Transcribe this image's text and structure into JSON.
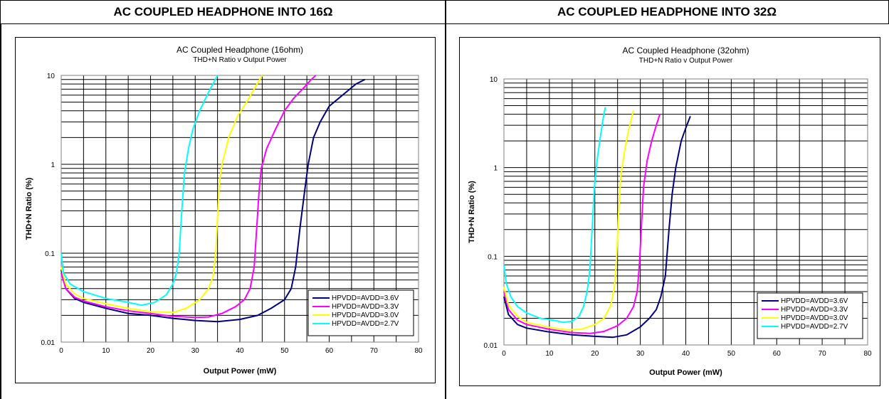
{
  "headers": {
    "left": "AC COUPLED HEADPHONE INTO 16Ω",
    "right": "AC COUPLED HEADPHONE INTO 32Ω"
  },
  "chart_data": [
    {
      "type": "line",
      "title": "AC Coupled Headphone (16ohm)",
      "subtitle": "THD+N Ratio v Output Power",
      "xlabel": "Output Power (mW)",
      "ylabel": "THD+N Ratio (%)",
      "xlim": [
        0,
        80
      ],
      "ylim": [
        0.01,
        10
      ],
      "yscale": "log",
      "grid": true,
      "legend_position": "bottom-right",
      "x_ticks": [
        "0",
        "10",
        "20",
        "30",
        "40",
        "50",
        "60",
        "70",
        "80"
      ],
      "y_ticks": [
        "0.01",
        "0.1",
        "1",
        "10"
      ],
      "series": [
        {
          "name": "HPVDD=AVDD=3.6V",
          "color": "#000080",
          "points": [
            [
              0,
              0.065
            ],
            [
              1,
              0.04
            ],
            [
              3,
              0.031
            ],
            [
              5,
              0.028
            ],
            [
              10,
              0.024
            ],
            [
              15,
              0.021
            ],
            [
              20,
              0.02
            ],
            [
              25,
              0.0185
            ],
            [
              30,
              0.0175
            ],
            [
              35,
              0.017
            ],
            [
              40,
              0.018
            ],
            [
              44,
              0.02
            ],
            [
              47,
              0.024
            ],
            [
              50,
              0.03
            ],
            [
              51.5,
              0.04
            ],
            [
              52.5,
              0.07
            ],
            [
              53.5,
              0.2
            ],
            [
              54.5,
              0.5
            ],
            [
              55.3,
              1
            ],
            [
              56.5,
              2
            ],
            [
              58,
              3
            ],
            [
              60,
              4.5
            ],
            [
              63,
              6
            ],
            [
              66,
              8
            ],
            [
              68,
              9
            ]
          ]
        },
        {
          "name": "HPVDD=AVDD=3.3V",
          "color": "#ff00ff",
          "points": [
            [
              0,
              0.06
            ],
            [
              1,
              0.04
            ],
            [
              3,
              0.032
            ],
            [
              5,
              0.029
            ],
            [
              10,
              0.025
            ],
            [
              15,
              0.0225
            ],
            [
              20,
              0.021
            ],
            [
              25,
              0.0195
            ],
            [
              30,
              0.019
            ],
            [
              33,
              0.0192
            ],
            [
              36,
              0.021
            ],
            [
              39,
              0.025
            ],
            [
              41,
              0.03
            ],
            [
              42.3,
              0.04
            ],
            [
              43.2,
              0.07
            ],
            [
              43.8,
              0.2
            ],
            [
              44.3,
              0.5
            ],
            [
              44.8,
              0.9
            ],
            [
              46,
              1.5
            ],
            [
              48,
              2.5
            ],
            [
              50,
              4
            ],
            [
              52,
              5.5
            ],
            [
              54,
              7
            ],
            [
              56,
              9
            ],
            [
              57,
              10
            ]
          ]
        },
        {
          "name": "HPVDD=AVDD=3.0V",
          "color": "#ffff00",
          "points": [
            [
              0,
              0.07
            ],
            [
              1,
              0.045
            ],
            [
              3,
              0.035
            ],
            [
              5,
              0.031
            ],
            [
              10,
              0.027
            ],
            [
              15,
              0.024
            ],
            [
              20,
              0.022
            ],
            [
              25,
              0.0215
            ],
            [
              28,
              0.024
            ],
            [
              31,
              0.03
            ],
            [
              33,
              0.04
            ],
            [
              34,
              0.055
            ],
            [
              34.6,
              0.1
            ],
            [
              35,
              0.25
            ],
            [
              35.4,
              0.6
            ],
            [
              36,
              1
            ],
            [
              37.5,
              2
            ],
            [
              39.5,
              3.5
            ],
            [
              41.5,
              5
            ],
            [
              43.5,
              7.5
            ],
            [
              45,
              10
            ]
          ]
        },
        {
          "name": "HPVDD=AVDD=2.7V",
          "color": "#00ffff",
          "points": [
            [
              0,
              0.1
            ],
            [
              0.5,
              0.06
            ],
            [
              2,
              0.045
            ],
            [
              5,
              0.037
            ],
            [
              10,
              0.031
            ],
            [
              15,
              0.028
            ],
            [
              18,
              0.026
            ],
            [
              21,
              0.028
            ],
            [
              23.5,
              0.034
            ],
            [
              25,
              0.045
            ],
            [
              25.8,
              0.06
            ],
            [
              26.4,
              0.1
            ],
            [
              27,
              0.3
            ],
            [
              27.6,
              0.8
            ],
            [
              28.5,
              1.5
            ],
            [
              29.5,
              2.5
            ],
            [
              31,
              4
            ],
            [
              33,
              6.5
            ],
            [
              35,
              10
            ]
          ]
        }
      ]
    },
    {
      "type": "line",
      "title": "AC Coupled Headphone (32ohm)",
      "subtitle": "THD+N Ratio v Output Power",
      "xlabel": "Output Power (mW)",
      "ylabel": "THD+N Ratio (%)",
      "xlim": [
        0,
        80
      ],
      "ylim": [
        0.01,
        10
      ],
      "yscale": "log",
      "grid": true,
      "legend_position": "bottom-right",
      "x_ticks": [
        "0",
        "10",
        "20",
        "30",
        "40",
        "50",
        "60",
        "70",
        "80"
      ],
      "y_ticks": [
        "0.01",
        "0.1",
        "1",
        "10"
      ],
      "series": [
        {
          "name": "HPVDD=AVDD=3.6V",
          "color": "#000080",
          "points": [
            [
              0,
              0.035
            ],
            [
              1,
              0.022
            ],
            [
              3,
              0.017
            ],
            [
              5,
              0.0155
            ],
            [
              10,
              0.014
            ],
            [
              15,
              0.013
            ],
            [
              20,
              0.0125
            ],
            [
              24,
              0.0122
            ],
            [
              27,
              0.013
            ],
            [
              30,
              0.016
            ],
            [
              32,
              0.02
            ],
            [
              33.5,
              0.025
            ],
            [
              34.5,
              0.035
            ],
            [
              35.5,
              0.06
            ],
            [
              36.3,
              0.2
            ],
            [
              37,
              0.5
            ],
            [
              37.8,
              1
            ],
            [
              39,
              2
            ],
            [
              40,
              2.8
            ],
            [
              41,
              3.8
            ]
          ]
        },
        {
          "name": "HPVDD=AVDD=3.3V",
          "color": "#ff00ff",
          "points": [
            [
              0,
              0.04
            ],
            [
              1,
              0.025
            ],
            [
              3,
              0.019
            ],
            [
              5,
              0.017
            ],
            [
              10,
              0.015
            ],
            [
              15,
              0.0138
            ],
            [
              19,
              0.0135
            ],
            [
              22,
              0.0142
            ],
            [
              25,
              0.0165
            ],
            [
              27,
              0.02
            ],
            [
              28.5,
              0.027
            ],
            [
              29.3,
              0.04
            ],
            [
              29.8,
              0.08
            ],
            [
              30.2,
              0.2
            ],
            [
              30.7,
              0.6
            ],
            [
              31.5,
              1.2
            ],
            [
              32.5,
              2
            ],
            [
              33.5,
              3
            ],
            [
              34.3,
              4
            ]
          ]
        },
        {
          "name": "HPVDD=AVDD=3.0V",
          "color": "#ffff00",
          "points": [
            [
              0,
              0.045
            ],
            [
              1,
              0.028
            ],
            [
              3,
              0.021
            ],
            [
              5,
              0.018
            ],
            [
              10,
              0.0158
            ],
            [
              14,
              0.0148
            ],
            [
              17,
              0.015
            ],
            [
              20,
              0.017
            ],
            [
              22,
              0.02
            ],
            [
              23.5,
              0.028
            ],
            [
              24.3,
              0.045
            ],
            [
              24.8,
              0.1
            ],
            [
              25.2,
              0.3
            ],
            [
              25.7,
              0.8
            ],
            [
              26.5,
              1.5
            ],
            [
              27.3,
              2.5
            ],
            [
              28,
              3.5
            ],
            [
              28.5,
              4.4
            ]
          ]
        },
        {
          "name": "HPVDD=AVDD=2.7V",
          "color": "#00ffff",
          "points": [
            [
              0,
              0.08
            ],
            [
              0.5,
              0.05
            ],
            [
              1.5,
              0.035
            ],
            [
              3,
              0.027
            ],
            [
              5,
              0.023
            ],
            [
              8,
              0.02
            ],
            [
              11,
              0.019
            ],
            [
              13,
              0.018
            ],
            [
              15,
              0.0185
            ],
            [
              16.5,
              0.021
            ],
            [
              17.5,
              0.027
            ],
            [
              18.3,
              0.04
            ],
            [
              18.9,
              0.07
            ],
            [
              19.4,
              0.2
            ],
            [
              19.9,
              0.6
            ],
            [
              20.5,
              1.2
            ],
            [
              21.2,
              2.2
            ],
            [
              21.8,
              3.5
            ],
            [
              22.3,
              4.8
            ]
          ]
        }
      ]
    }
  ]
}
